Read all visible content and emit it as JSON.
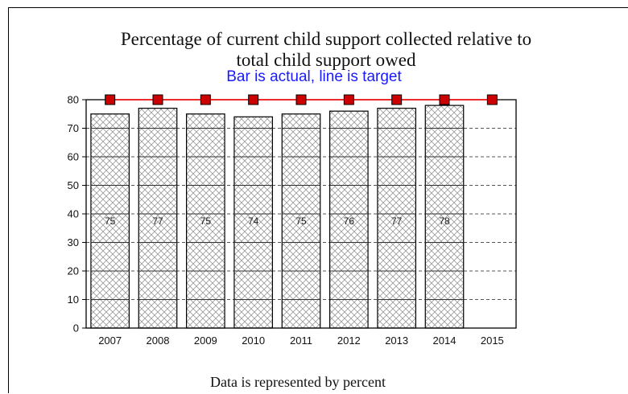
{
  "chart_data": {
    "type": "bar",
    "title_line1": "Percentage of current child support collected relative to",
    "title_line2": "total child support owed",
    "subtitle": "Bar is actual, line is target",
    "footnote": "Data is represented by percent",
    "categories": [
      "2007",
      "2008",
      "2009",
      "2010",
      "2011",
      "2012",
      "2013",
      "2014",
      "2015"
    ],
    "series": [
      {
        "values": [
          75,
          77,
          75,
          74,
          75,
          76,
          77,
          78,
          null
        ],
        "labels": [
          "75",
          "77",
          "75",
          "74",
          "75",
          "76",
          "77",
          "78",
          ""
        ]
      },
      {
        "type": "line",
        "values": [
          80,
          80,
          80,
          80,
          80,
          80,
          80,
          80,
          80
        ]
      }
    ],
    "ylim": [
      0,
      80
    ],
    "yticks": [
      0,
      10,
      20,
      30,
      40,
      50,
      60,
      70,
      80
    ],
    "grid": true,
    "colors": {
      "bar_fill": "#ffffff",
      "bar_hatch": "#9a9a9a",
      "target_line": "#ff0000",
      "target_marker": "#cc0000",
      "subtitle": "#1a1aff"
    }
  }
}
